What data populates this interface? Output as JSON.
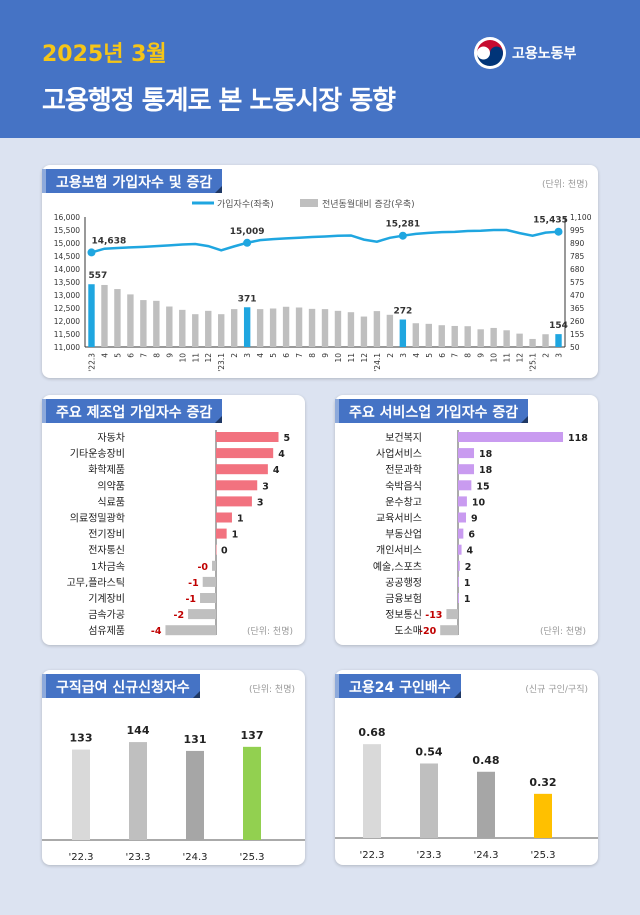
{
  "header": {
    "date": "2025년 3월",
    "title": "고용행정 통계로 본 노동시장 동향",
    "logo_text": "고용노동부"
  },
  "colors": {
    "header": "#4573c5",
    "line": "#1fa6e0",
    "bar_gray": "#bfbfbf",
    "manufacturing": "#f2727f",
    "services": "#c99bf0",
    "negative_label": "#c00000",
    "claims_2025": "#92d050",
    "ratio_2025": "#ffc000"
  },
  "chart_data": [
    {
      "type": "bar+line",
      "title": "고용보험 가입자수 및 증감",
      "unit": "(단위: 천명)",
      "legend": [
        "가입자수(좌축)",
        "전년동월대비 증감(우축)"
      ],
      "legend_placement": "top",
      "x": [
        "'22.3",
        "4",
        "5",
        "6",
        "7",
        "8",
        "9",
        "10",
        "11",
        "12",
        "'23.1",
        "2",
        "3",
        "4",
        "5",
        "6",
        "7",
        "8",
        "9",
        "10",
        "11",
        "12",
        "'24.1",
        "2",
        "3",
        "4",
        "5",
        "6",
        "7",
        "8",
        "9",
        "10",
        "11",
        "12",
        "'25.1",
        "2",
        "3"
      ],
      "left_ticks": [
        "11,000",
        "11,500",
        "12,000",
        "12,500",
        "13,000",
        "13,500",
        "14,000",
        "14,500",
        "15,000",
        "15,500",
        "16,000"
      ],
      "ylim_left": [
        11000,
        16000
      ],
      "right_ticks": [
        "50",
        "155",
        "260",
        "365",
        "470",
        "575",
        "680",
        "785",
        "890",
        "995",
        "1,100"
      ],
      "ylim_right": [
        50,
        1100
      ],
      "line": [
        14638,
        14780,
        14810,
        14830,
        14850,
        14880,
        14910,
        14940,
        14960,
        14880,
        14720,
        14870,
        15009,
        15110,
        15150,
        15180,
        15200,
        15230,
        15250,
        15280,
        15290,
        15130,
        15050,
        15200,
        15281,
        15350,
        15390,
        15420,
        15430,
        15460,
        15470,
        15500,
        15500,
        15380,
        15280,
        15400,
        15435
      ],
      "bars": [
        557,
        551,
        518,
        475,
        429,
        423,
        377,
        350,
        315,
        342,
        315,
        356,
        371,
        356,
        361,
        375,
        369,
        358,
        356,
        342,
        331,
        296,
        340,
        310,
        272,
        242,
        237,
        226,
        220,
        218,
        193,
        204,
        185,
        158,
        115,
        153,
        154
      ],
      "highlight": [
        0,
        12,
        24,
        36
      ],
      "line_labels": [
        "14,638",
        "15,009",
        "15,281",
        "15,435"
      ],
      "bar_labels": [
        "557",
        "371",
        "272",
        "154"
      ]
    },
    {
      "type": "hbar",
      "title": "주요 제조업 가입자수 증감",
      "unit": "(단위: 천명)",
      "categories": [
        "자동차",
        "기타운송장비",
        "화학제품",
        "의약품",
        "식료품",
        "의료정밀광학",
        "전기장비",
        "전자통신",
        "1차금속",
        "고무,플라스틱",
        "기계장비",
        "금속가공",
        "섬유제품"
      ],
      "values": [
        4.7,
        4.3,
        3.9,
        3.1,
        2.7,
        1.2,
        0.8,
        0.0,
        -0.3,
        -1.0,
        -1.2,
        -2.1,
        -3.8
      ],
      "labels": [
        "5",
        "4",
        "4",
        "3",
        "3",
        "1",
        "1",
        "0",
        "-0",
        "-1",
        "-1",
        "-2",
        "-4"
      ]
    },
    {
      "type": "hbar",
      "title": "주요 서비스업 가입자수 증감",
      "unit": "(단위: 천명)",
      "categories": [
        "보건복지",
        "사업서비스",
        "전문과학",
        "숙박음식",
        "운수창고",
        "교육서비스",
        "부동산업",
        "개인서비스",
        "예술,스포츠",
        "공공행정",
        "금융보험",
        "정보통신",
        "도소매"
      ],
      "values": [
        118,
        18,
        18,
        15,
        10,
        9,
        6,
        4,
        2,
        1,
        1,
        -13,
        -20
      ],
      "labels": [
        "118",
        "18",
        "18",
        "15",
        "10",
        "9",
        "6",
        "4",
        "2",
        "1",
        "1",
        "-13",
        "-20"
      ]
    },
    {
      "type": "bar",
      "title": "구직급여 신규신청자수",
      "unit": "(단위: 천명)",
      "categories": [
        "'22.3",
        "'23.3",
        "'24.3",
        "'25.3"
      ],
      "values": [
        133,
        144,
        131,
        137
      ],
      "labels": [
        "133",
        "144",
        "131",
        "137"
      ],
      "colors": [
        "#d9d9d9",
        "#bfbfbf",
        "#a6a6a6",
        "#92d050"
      ]
    },
    {
      "type": "bar",
      "title": "고용24 구인배수",
      "unit": "(신규 구인/구직)",
      "categories": [
        "'22.3",
        "'23.3",
        "'24.3",
        "'25.3"
      ],
      "values": [
        0.68,
        0.54,
        0.48,
        0.32
      ],
      "labels": [
        "0.68",
        "0.54",
        "0.48",
        "0.32"
      ],
      "colors": [
        "#d9d9d9",
        "#bfbfbf",
        "#a6a6a6",
        "#ffc000"
      ]
    }
  ]
}
